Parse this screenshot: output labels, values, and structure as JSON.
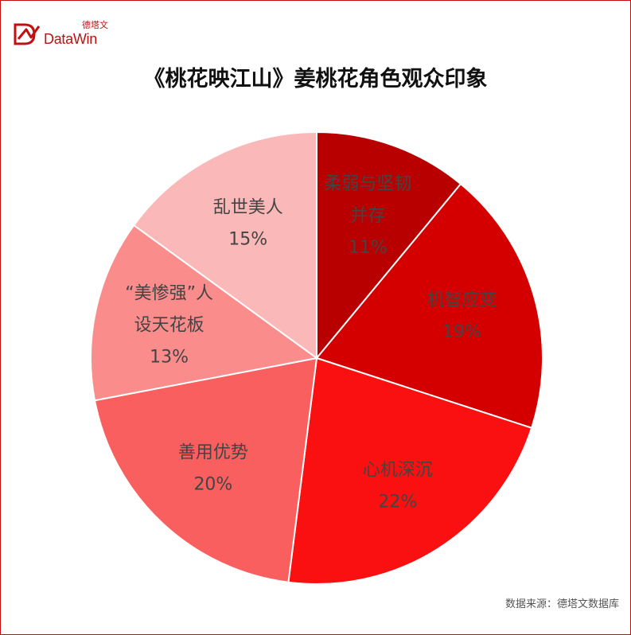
{
  "brand": {
    "name_cn": "德塔文",
    "name_en": "DataWin",
    "color": "#c01010"
  },
  "chart_data": {
    "type": "pie",
    "title": "《桃花映江山》姜桃花角色观众印象",
    "slices": [
      {
        "label": [
          "柔弱与坚韧",
          "并存"
        ],
        "value": 11,
        "display": "11%",
        "color": "#b80000"
      },
      {
        "label": [
          "机智应变"
        ],
        "value": 19,
        "display": "19%",
        "color": "#d40000"
      },
      {
        "label": [
          "心机深沉"
        ],
        "value": 22,
        "display": "22%",
        "color": "#fa1010"
      },
      {
        "label": [
          "善用优势"
        ],
        "value": 20,
        "display": "20%",
        "color": "#fa5f5f"
      },
      {
        "label": [
          "“美惨强”人",
          "设天花板"
        ],
        "value": 13,
        "display": "13%",
        "color": "#fa8c8c"
      },
      {
        "label": [
          "乱世美人"
        ],
        "value": 15,
        "display": "15%",
        "color": "#fbb8b8"
      }
    ],
    "start": "top",
    "direction": "clockwise",
    "legend": "none"
  },
  "source_text": "数据来源：德塔文数据库"
}
